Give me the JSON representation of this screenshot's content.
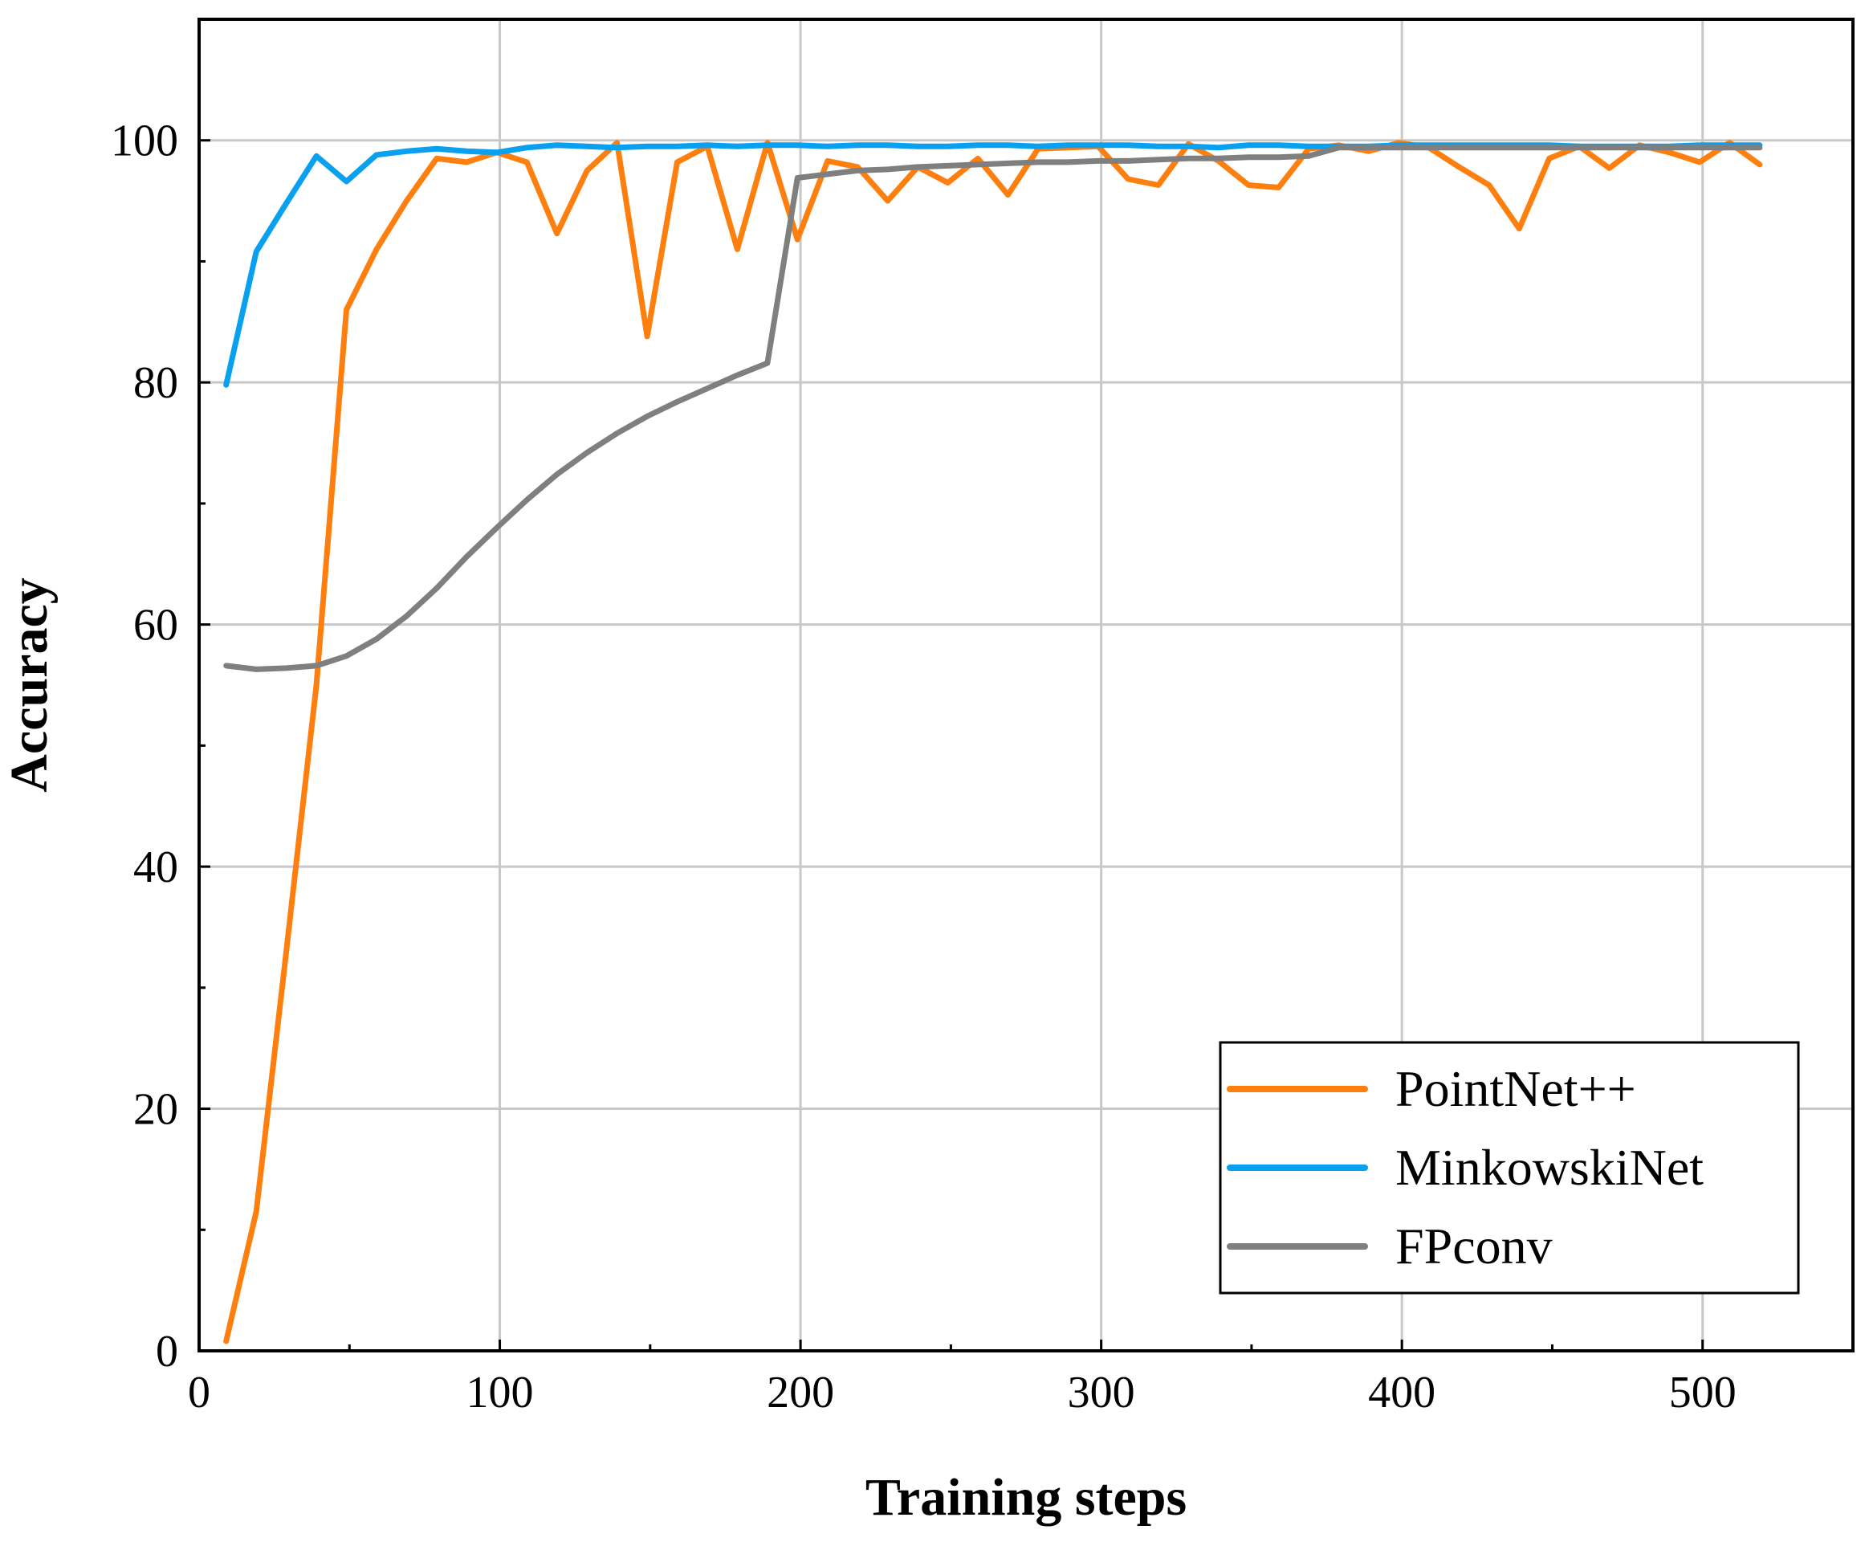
{
  "chart_data": {
    "type": "line",
    "title": "",
    "xlabel": "Training steps",
    "ylabel": "Accuracy",
    "xlim": [
      0,
      550
    ],
    "ylim": [
      0,
      110
    ],
    "x_ticks": [
      0,
      100,
      200,
      300,
      400,
      500
    ],
    "y_ticks": [
      0,
      20,
      40,
      60,
      80,
      100
    ],
    "grid": true,
    "legend_position": "bottom-right",
    "series": [
      {
        "name": "PointNet++",
        "color": "#ff7f0e",
        "x": [
          9,
          19,
          29,
          39,
          49,
          59,
          69,
          79,
          89,
          99,
          109,
          119,
          129,
          139,
          149,
          159,
          169,
          179,
          189,
          199,
          209,
          219,
          229,
          239,
          249,
          259,
          269,
          279,
          289,
          299,
          309,
          319,
          329,
          339,
          349,
          359,
          369,
          379,
          389,
          399,
          409,
          419,
          429,
          439,
          449,
          459,
          469,
          479,
          489,
          499,
          509,
          519
        ],
        "y": [
          0.8,
          11.5,
          33,
          55,
          86,
          91,
          95,
          98.5,
          98.2,
          99,
          98.2,
          92.3,
          97.5,
          99.8,
          83.8,
          98.2,
          99.5,
          91,
          99.8,
          91.8,
          98.3,
          97.8,
          95,
          97.8,
          96.5,
          98.5,
          95.5,
          99.3,
          99.4,
          99.5,
          96.8,
          96.3,
          99.7,
          98.3,
          96.3,
          96.1,
          99.3,
          99.6,
          99.1,
          99.8,
          99.4,
          97.8,
          96.3,
          92.7,
          98.5,
          99.5,
          97.7,
          99.6,
          99,
          98.2,
          99.8,
          98
        ]
      },
      {
        "name": "MinkowskiNet",
        "color": "#0aa0f0",
        "x": [
          9,
          19,
          29,
          39,
          49,
          59,
          69,
          79,
          89,
          99,
          109,
          119,
          129,
          139,
          149,
          159,
          169,
          179,
          189,
          199,
          209,
          219,
          229,
          239,
          249,
          259,
          269,
          279,
          289,
          299,
          309,
          319,
          329,
          339,
          349,
          359,
          369,
          379,
          389,
          399,
          409,
          419,
          429,
          439,
          449,
          459,
          469,
          479,
          489,
          499,
          509,
          519
        ],
        "y": [
          79.8,
          90.8,
          94.8,
          98.7,
          96.6,
          98.8,
          99.1,
          99.3,
          99.1,
          99,
          99.4,
          99.6,
          99.5,
          99.4,
          99.5,
          99.5,
          99.6,
          99.5,
          99.6,
          99.6,
          99.5,
          99.6,
          99.6,
          99.5,
          99.5,
          99.6,
          99.6,
          99.5,
          99.6,
          99.6,
          99.6,
          99.5,
          99.5,
          99.4,
          99.6,
          99.6,
          99.5,
          99.5,
          99.5,
          99.6,
          99.6,
          99.6,
          99.6,
          99.6,
          99.6,
          99.5,
          99.5,
          99.5,
          99.5,
          99.6,
          99.6,
          99.6
        ]
      },
      {
        "name": "FPconv",
        "color": "#7f7f7f",
        "x": [
          9,
          19,
          29,
          39,
          49,
          59,
          69,
          79,
          89,
          99,
          109,
          119,
          129,
          139,
          149,
          159,
          169,
          179,
          189,
          199,
          209,
          219,
          229,
          239,
          249,
          259,
          269,
          279,
          289,
          299,
          309,
          319,
          329,
          339,
          349,
          359,
          369,
          379,
          389,
          399,
          409,
          419,
          429,
          439,
          449,
          459,
          469,
          479,
          489,
          499,
          509,
          519
        ],
        "y": [
          56.6,
          56.3,
          56.4,
          56.6,
          57.4,
          58.8,
          60.7,
          63,
          65.6,
          68,
          70.3,
          72.4,
          74.2,
          75.8,
          77.2,
          78.4,
          79.5,
          80.6,
          81.6,
          96.9,
          97.2,
          97.5,
          97.6,
          97.8,
          97.9,
          98,
          98.1,
          98.2,
          98.2,
          98.3,
          98.3,
          98.4,
          98.5,
          98.5,
          98.6,
          98.6,
          98.7,
          99.4,
          99.4,
          99.4,
          99.4,
          99.4,
          99.4,
          99.4,
          99.4,
          99.4,
          99.4,
          99.4,
          99.4,
          99.4,
          99.4,
          99.4
        ]
      }
    ]
  }
}
